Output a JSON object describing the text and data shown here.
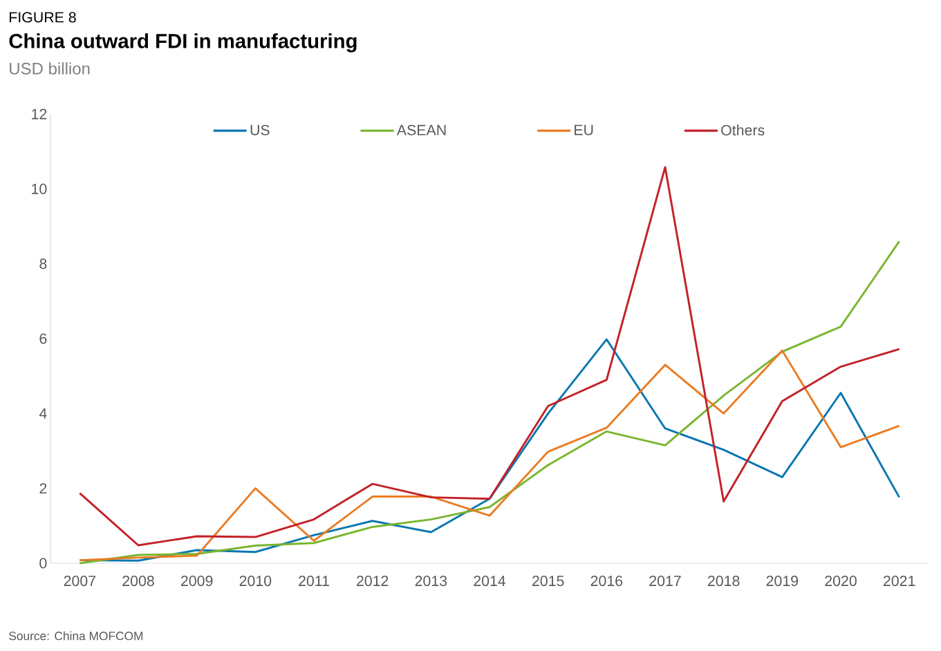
{
  "chart_data": {
    "type": "line",
    "title": "China outward FDI in manufacturing",
    "subtitle": "USD billion",
    "annotations": [
      "FIGURE 8",
      "Source: China MOFCOM"
    ],
    "categories": [
      "2007",
      "2008",
      "2009",
      "2010",
      "2011",
      "2012",
      "2013",
      "2014",
      "2015",
      "2016",
      "2017",
      "2018",
      "2019",
      "2020",
      "2021"
    ],
    "series": [
      {
        "name": "US",
        "color": "#0a77b0",
        "values": [
          0.08,
          0.07,
          0.35,
          0.3,
          0.75,
          1.13,
          0.83,
          1.72,
          4.0,
          5.98,
          3.6,
          3.03,
          2.3,
          4.55,
          1.76
        ]
      },
      {
        "name": "ASEAN",
        "color": "#7ab62e",
        "values": [
          0.0,
          0.22,
          0.25,
          0.47,
          0.54,
          0.97,
          1.17,
          1.5,
          2.62,
          3.52,
          3.15,
          4.48,
          5.65,
          6.32,
          8.6
        ]
      },
      {
        "name": "EU",
        "color": "#ea7c24",
        "values": [
          0.08,
          0.15,
          0.2,
          2.0,
          0.6,
          1.78,
          1.78,
          1.27,
          2.98,
          3.62,
          5.3,
          4.0,
          5.68,
          3.1,
          3.67
        ]
      },
      {
        "name": "Others",
        "color": "#c42127",
        "values": [
          1.87,
          0.48,
          0.72,
          0.7,
          1.17,
          2.12,
          1.76,
          1.72,
          4.2,
          4.9,
          10.58,
          1.65,
          4.33,
          5.25,
          5.72
        ]
      }
    ],
    "ylim": [
      0,
      12
    ],
    "yticks": [
      0,
      2,
      4,
      6,
      8,
      10,
      12
    ],
    "grid": false,
    "legend": "top",
    "marker": "none",
    "line_style": "solid"
  }
}
